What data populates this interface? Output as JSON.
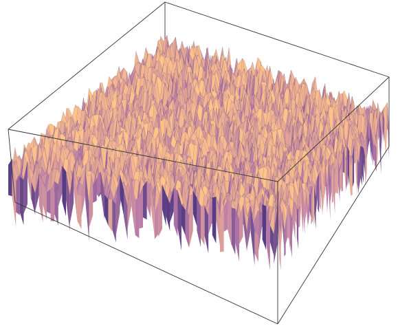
{
  "chart_data": {
    "type": "surface3d",
    "title": "",
    "xlabel": "",
    "ylabel": "",
    "zlabel": "",
    "axes_visible": false,
    "bounding_box": true,
    "grid": false,
    "legend": "none",
    "surface": "random-noise",
    "colors": {
      "low": "#3a2a78",
      "mid": "#b87aa8",
      "high": "#ffc48a",
      "box": "#333333",
      "background": "#ffffff"
    }
  }
}
